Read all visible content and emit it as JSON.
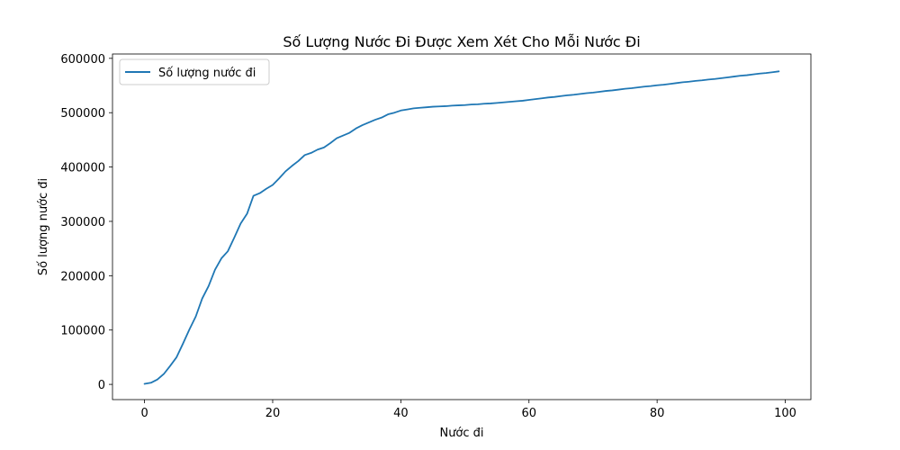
{
  "chart_data": {
    "type": "line",
    "title": "Số Lượng Nước Đi Được Xem Xét Cho Mỗi Nước Đi",
    "xlabel": "Nước đi",
    "ylabel": "Số lượng nước đi",
    "xlim": [
      -5,
      104
    ],
    "ylim": [
      -28000,
      608000
    ],
    "xticks": [
      0,
      20,
      40,
      60,
      80,
      100
    ],
    "yticks": [
      0,
      100000,
      200000,
      300000,
      400000,
      500000,
      600000
    ],
    "xtick_labels": [
      "0",
      "20",
      "40",
      "60",
      "80",
      "100"
    ],
    "ytick_labels": [
      "0",
      "100000",
      "200000",
      "300000",
      "400000",
      "500000",
      "600000"
    ],
    "legend_position": "top-left",
    "grid": false,
    "series": [
      {
        "name": "Số lượng nước đi",
        "color": "#1f77b4",
        "x": [
          0,
          1,
          2,
          3,
          4,
          5,
          6,
          7,
          8,
          9,
          10,
          11,
          12,
          13,
          14,
          15,
          16,
          17,
          18,
          19,
          20,
          21,
          22,
          23,
          24,
          25,
          26,
          27,
          28,
          29,
          30,
          31,
          32,
          33,
          34,
          35,
          36,
          37,
          38,
          39,
          40,
          41,
          42,
          43,
          44,
          45,
          46,
          47,
          48,
          49,
          50,
          51,
          52,
          53,
          54,
          55,
          56,
          57,
          58,
          59,
          60,
          61,
          62,
          63,
          64,
          65,
          66,
          67,
          68,
          69,
          70,
          71,
          72,
          73,
          74,
          75,
          76,
          77,
          78,
          79,
          80,
          81,
          82,
          83,
          84,
          85,
          86,
          87,
          88,
          89,
          90,
          91,
          92,
          93,
          94,
          95,
          96,
          97,
          98,
          99
        ],
        "y": [
          1000,
          3000,
          9000,
          19000,
          34000,
          50000,
          75000,
          101000,
          125000,
          158000,
          181000,
          211000,
          232000,
          245000,
          270000,
          296000,
          314000,
          347000,
          352000,
          360000,
          367000,
          379000,
          392000,
          402000,
          411000,
          422000,
          426000,
          432000,
          436000,
          444000,
          453000,
          458000,
          463000,
          471000,
          477000,
          482000,
          487000,
          491000,
          497000,
          500000,
          504000,
          506000,
          508000,
          509000,
          510000,
          511000,
          511500,
          512000,
          513000,
          513500,
          514000,
          515000,
          515500,
          516500,
          517000,
          518000,
          519000,
          520000,
          521000,
          522000,
          523500,
          525000,
          526500,
          528000,
          529000,
          530500,
          532000,
          533000,
          534500,
          536000,
          537000,
          538500,
          540000,
          541000,
          542500,
          544000,
          545000,
          546500,
          548000,
          549000,
          550500,
          551500,
          553000,
          554500,
          556000,
          557000,
          558500,
          559500,
          561000,
          562000,
          563500,
          565000,
          566500,
          568000,
          569000,
          570500,
          572000,
          573000,
          574500,
          576000
        ]
      }
    ]
  }
}
